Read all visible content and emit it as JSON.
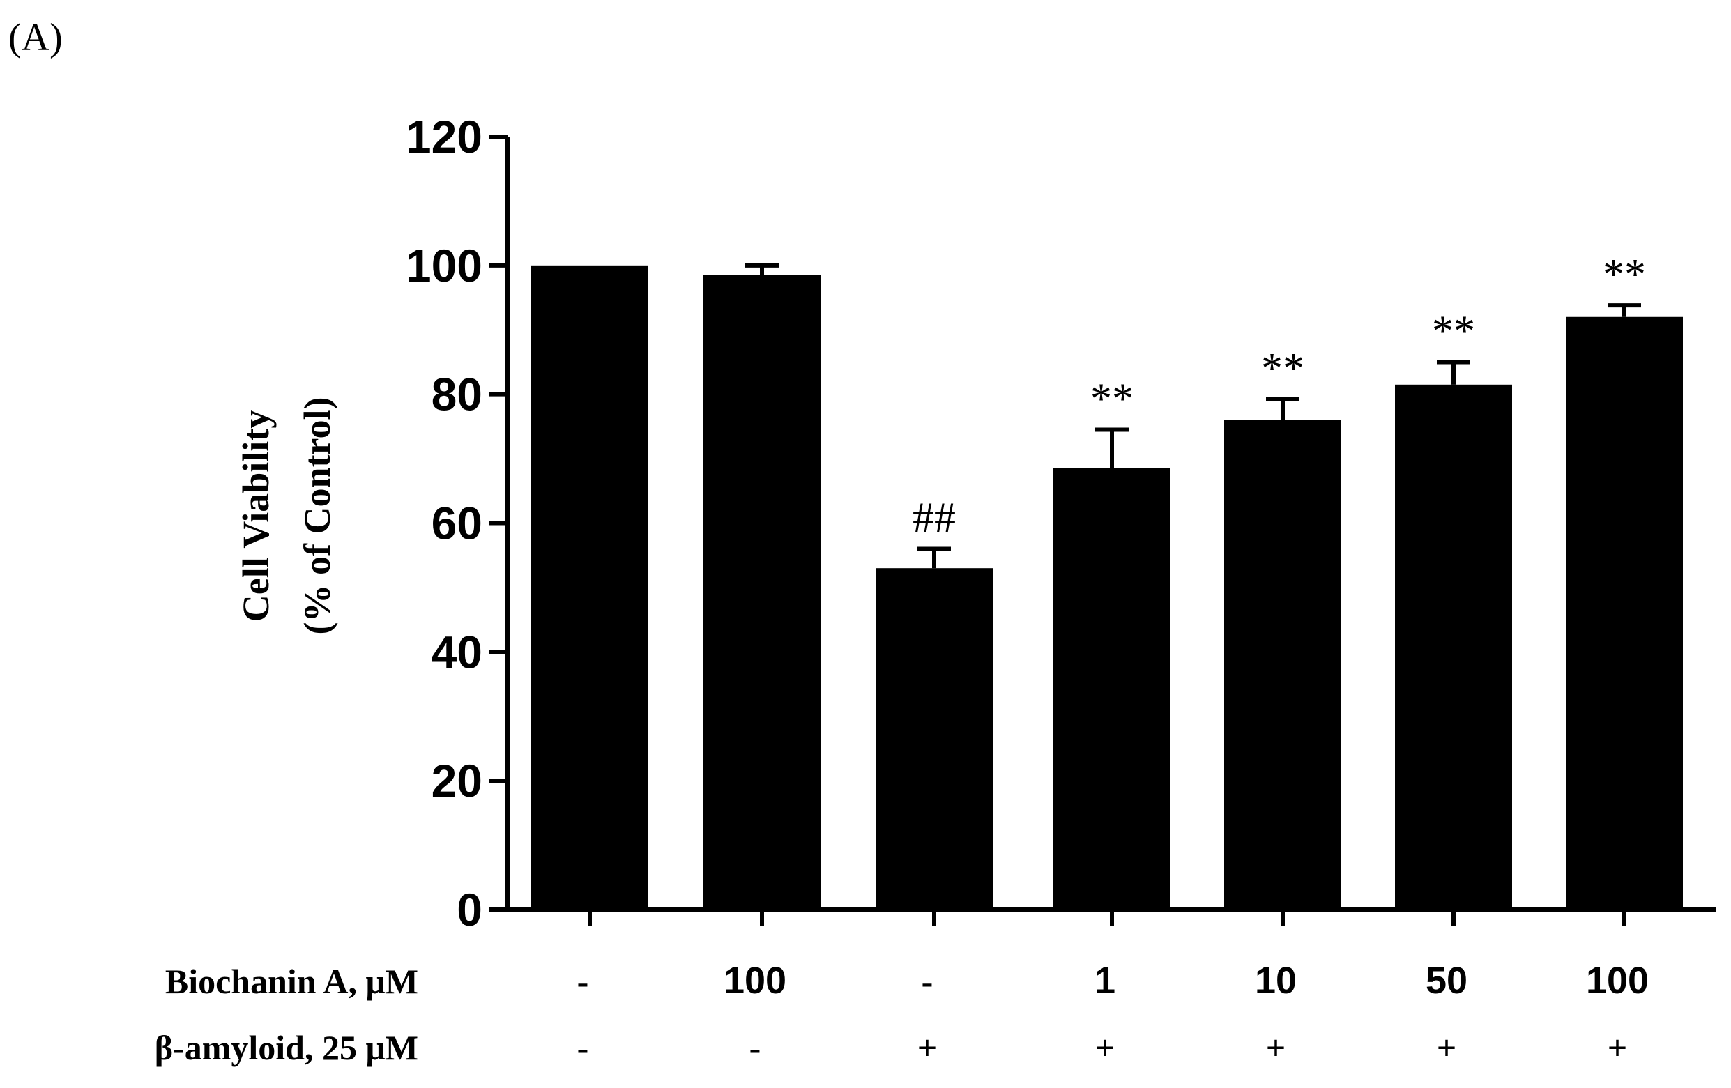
{
  "panel_label": "(A)",
  "chart_data": {
    "type": "bar",
    "ylabel_line1": "Cell Viability",
    "ylabel_line2": "(% of Control)",
    "ylim": [
      0,
      120
    ],
    "yticks": [
      0,
      20,
      40,
      60,
      80,
      100,
      120
    ],
    "values": [
      100,
      98.5,
      53,
      68.5,
      76,
      81.5,
      92
    ],
    "errors": [
      0,
      1.5,
      3,
      6,
      3.2,
      3.5,
      1.8
    ],
    "annotations": [
      "",
      "",
      "##",
      "**",
      "**",
      "**",
      "**"
    ],
    "bar_color": "#000000",
    "grid": false
  },
  "treatments": [
    {
      "label": "Biochanin A, μM",
      "values": [
        "-",
        "100",
        "-",
        "1",
        "10",
        "50",
        "100"
      ]
    },
    {
      "label": "β-amyloid, 25 μM",
      "values": [
        "-",
        "-",
        "+",
        "+",
        "+",
        "+",
        "+"
      ]
    }
  ]
}
